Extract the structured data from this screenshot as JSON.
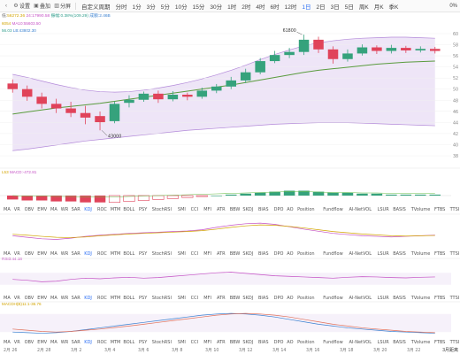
{
  "toolbar": {
    "items": [
      {
        "name": "back-arrow",
        "icon": "‹",
        "label": ""
      },
      {
        "name": "settings",
        "icon": "⚙",
        "label": "设置"
      },
      {
        "name": "overlay",
        "icon": "▣",
        "label": "叠加"
      },
      {
        "name": "split",
        "icon": "▥",
        "label": "分屏"
      }
    ],
    "periods": [
      "自定义周期",
      "分时",
      "1分",
      "3分",
      "5分",
      "10分",
      "15分",
      "30分",
      "1时",
      "2时",
      "4时",
      "6时",
      "12时",
      "1日",
      "2日",
      "3日",
      "5日",
      "周K",
      "月K",
      "季K"
    ],
    "active_period": "1日",
    "right_label": "0%"
  },
  "info": {
    "prefix": "低:",
    "low": "56272.36",
    "change": "24:17990.58",
    "amplitude": "振幅:0.38%(109.29)",
    "turnover": "成额:2.46B"
  },
  "ma_label": {
    "ma5_prefix": "60",
    "ma5": "54",
    "ma10_prefix": "MA10:",
    "ma10": "55603.50",
    "line2_a": "56.03",
    "line2_b": "LB:43802.30"
  },
  "macd_label": {
    "a": "L53",
    "b": "MACD:-472.81"
  },
  "rsi_label": "RSI3:44.18",
  "kdj_label": "MACDH(B)11:1-36.76",
  "indicators": [
    "MA",
    "VR",
    "OBV",
    "EMV",
    "MA",
    "WR",
    "SAR",
    "KDJ",
    "ROC",
    "MTM",
    "BOLL",
    "PSY",
    "StochRSI",
    "SMI",
    "CCI",
    "MFI",
    "ATR",
    "BBW",
    "SKDJ",
    "BIAS",
    "DPO",
    "AO",
    "Position",
    "Fundflow",
    "AI-NetVOL",
    "LSUR",
    "BASIS",
    "TVolume",
    "FTBS",
    "TTSI",
    "TTMU"
  ],
  "active_indicator": "KDJ",
  "dates": [
    "2月 26",
    "2月 28",
    "3月 2",
    "3月 4",
    "3月 6",
    "3月 8",
    "3月 10",
    "3月 12",
    "3月 14",
    "3月 16",
    "3月 18",
    "3月 20",
    "3月 22"
  ],
  "y_ticks": [
    "60",
    "58",
    "56",
    "54",
    "52",
    "50",
    "48",
    "46",
    "44",
    "42",
    "40",
    "38"
  ],
  "annotations": {
    "low": "43000",
    "high": "61800"
  },
  "brand": "3月距离",
  "colors": {
    "up": "#35a27c",
    "down": "#e0435a",
    "band": "#b38ad9",
    "ma": "#5a9c3e"
  },
  "chart_data": {
    "type": "candlestick",
    "ylim": [
      38000,
      62000
    ],
    "candles": [
      {
        "o": 52200,
        "c": 51100,
        "h": 53000,
        "l": 50400
      },
      {
        "o": 51100,
        "c": 49600,
        "h": 51800,
        "l": 48800
      },
      {
        "o": 49600,
        "c": 48200,
        "h": 50400,
        "l": 47300
      },
      {
        "o": 48200,
        "c": 47300,
        "h": 49200,
        "l": 46400
      },
      {
        "o": 47300,
        "c": 46400,
        "h": 48600,
        "l": 45600
      },
      {
        "o": 46400,
        "c": 45500,
        "h": 47800,
        "l": 44200
      },
      {
        "o": 45800,
        "c": 44600,
        "h": 46700,
        "l": 43000
      },
      {
        "o": 44800,
        "c": 48200,
        "h": 48700,
        "l": 44400
      },
      {
        "o": 48400,
        "c": 49000,
        "h": 49900,
        "l": 47500
      },
      {
        "o": 49000,
        "c": 50200,
        "h": 50600,
        "l": 48600
      },
      {
        "o": 50200,
        "c": 49100,
        "h": 50800,
        "l": 48400
      },
      {
        "o": 49100,
        "c": 50000,
        "h": 50700,
        "l": 48700
      },
      {
        "o": 50000,
        "c": 49600,
        "h": 50400,
        "l": 48900
      },
      {
        "o": 49600,
        "c": 50800,
        "h": 51400,
        "l": 49200
      },
      {
        "o": 50800,
        "c": 51600,
        "h": 52100,
        "l": 50300
      },
      {
        "o": 51600,
        "c": 52800,
        "h": 53500,
        "l": 51100
      },
      {
        "o": 52800,
        "c": 54400,
        "h": 55100,
        "l": 52300
      },
      {
        "o": 54400,
        "c": 56600,
        "h": 57200,
        "l": 54000
      },
      {
        "o": 56600,
        "c": 57800,
        "h": 58600,
        "l": 56200
      },
      {
        "o": 57800,
        "c": 58400,
        "h": 59200,
        "l": 57200
      },
      {
        "o": 58400,
        "c": 60800,
        "h": 61800,
        "l": 57800
      },
      {
        "o": 60800,
        "c": 58900,
        "h": 61400,
        "l": 58200
      },
      {
        "o": 58900,
        "c": 57000,
        "h": 59500,
        "l": 56100
      },
      {
        "o": 57000,
        "c": 58100,
        "h": 58900,
        "l": 56500
      },
      {
        "o": 58100,
        "c": 59300,
        "h": 59900,
        "l": 57700
      },
      {
        "o": 59300,
        "c": 58600,
        "h": 59700,
        "l": 58000
      },
      {
        "o": 58600,
        "c": 59200,
        "h": 59800,
        "l": 58100
      },
      {
        "o": 59200,
        "c": 58700,
        "h": 59600,
        "l": 58200
      },
      {
        "o": 58700,
        "c": 59000,
        "h": 59500,
        "l": 58300
      },
      {
        "o": 59000,
        "c": 58600,
        "h": 59400,
        "l": 58100
      }
    ],
    "ma_line": [
      46200,
      46600,
      47000,
      47400,
      47700,
      48000,
      48300,
      48700,
      49100,
      49500,
      49900,
      50300,
      50700,
      51100,
      51500,
      51900,
      52400,
      52900,
      53400,
      53900,
      54400,
      54800,
      55100,
      55400,
      55700,
      56000,
      56200,
      56400,
      56500,
      56600
    ],
    "band_upper": [
      54000,
      53400,
      52700,
      52000,
      51400,
      50900,
      50600,
      50500,
      50600,
      50900,
      51300,
      51800,
      52400,
      53100,
      53900,
      54800,
      55800,
      56900,
      57900,
      58800,
      59600,
      60200,
      60600,
      60900,
      61100,
      61200,
      61300,
      61300,
      61200,
      61100
    ],
    "band_lower": [
      39000,
      39300,
      39700,
      40100,
      40500,
      40900,
      41200,
      41500,
      41800,
      42100,
      42400,
      42700,
      43000,
      43200,
      43400,
      43600,
      43800,
      44000,
      44200,
      44300,
      44400,
      44500,
      44500,
      44500,
      44400,
      44300,
      44200,
      44100,
      44000,
      43900
    ],
    "macd_hist": [
      -4,
      -5,
      -5,
      -6,
      -6,
      -7,
      -7,
      -7,
      -6,
      -5,
      -4,
      -3,
      -2,
      -1,
      0,
      1,
      2,
      3,
      4,
      5,
      5,
      4,
      3,
      3,
      2,
      2,
      1,
      1,
      1,
      1
    ],
    "kdj_k": [
      40,
      35,
      30,
      28,
      32,
      38,
      42,
      45,
      48,
      50,
      52,
      54,
      56,
      60,
      68,
      75,
      80,
      82,
      78,
      70,
      62,
      55,
      48,
      44,
      40,
      38,
      36,
      38,
      40,
      42
    ],
    "kdj_d": [
      45,
      42,
      38,
      35,
      34,
      36,
      40,
      43,
      46,
      48,
      50,
      52,
      54,
      57,
      62,
      68,
      73,
      76,
      75,
      71,
      66,
      60,
      54,
      50,
      46,
      43,
      40,
      39,
      40,
      41
    ],
    "rsi": [
      48,
      45,
      40,
      42,
      48,
      52,
      50,
      53,
      55,
      52,
      54,
      58,
      62,
      66,
      70,
      72,
      68,
      64,
      60,
      58,
      56,
      54,
      52,
      55,
      57,
      56,
      54,
      53,
      55,
      56
    ],
    "macd2_a": [
      20,
      18,
      16,
      18,
      22,
      28,
      34,
      40,
      46,
      52,
      58,
      64,
      70,
      76,
      80,
      82,
      80,
      76,
      70,
      62,
      54,
      46,
      40,
      34,
      30,
      26,
      22,
      20,
      18,
      16
    ],
    "macd2_b": [
      30,
      26,
      22,
      20,
      22,
      26,
      30,
      35,
      40,
      46,
      52,
      58,
      64,
      70,
      76,
      80,
      82,
      80,
      76,
      70,
      62,
      54,
      46,
      40,
      34,
      30,
      26,
      22,
      20,
      18
    ]
  }
}
